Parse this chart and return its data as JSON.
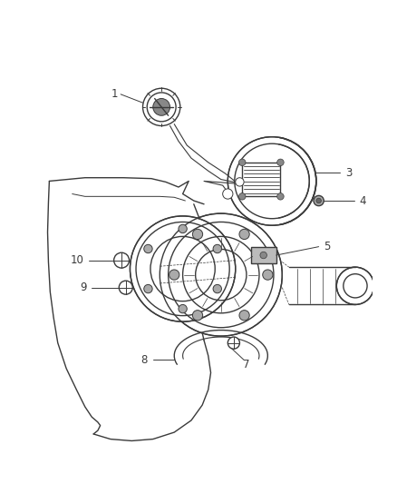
{
  "background_color": "#ffffff",
  "line_color": "#3a3a3a",
  "line_width": 1.0,
  "label_fontsize": 8.5,
  "fig_width": 4.38,
  "fig_height": 5.33,
  "dpi": 100
}
